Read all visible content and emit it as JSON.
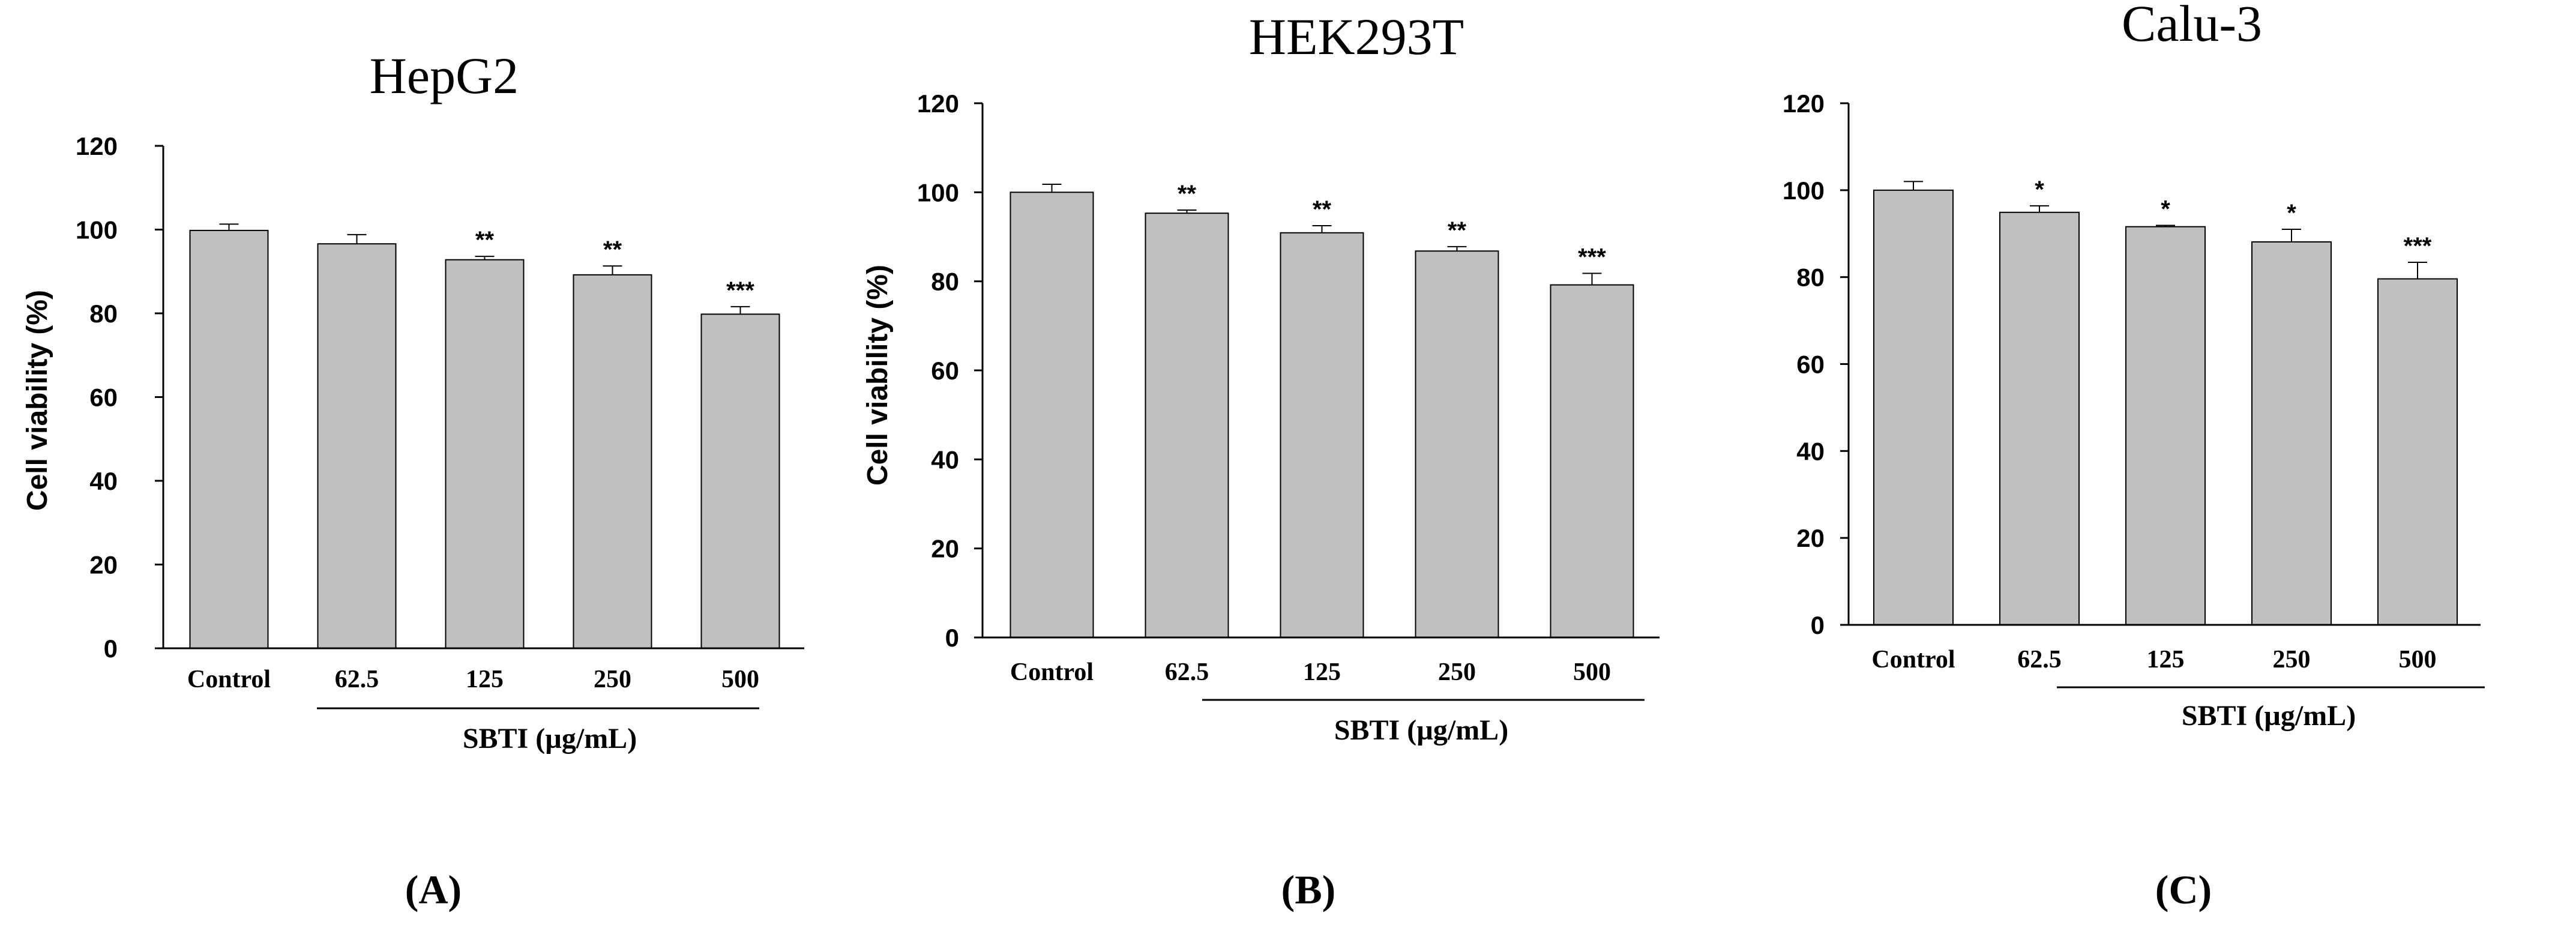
{
  "chart_data": [
    {
      "type": "bar",
      "panel_label": "(A)",
      "title": "HepG2",
      "ylabel": "Cell viability (%)",
      "xlabel": "SBTI (µg/mL)",
      "categories": [
        "Control",
        "62.5",
        "125",
        "250",
        "500"
      ],
      "values": [
        99.8,
        96.6,
        92.8,
        89.2,
        79.8
      ],
      "errors": [
        1.5,
        2.2,
        0.8,
        2.1,
        1.8
      ],
      "annotations": [
        "",
        "",
        "**",
        "**",
        "***"
      ],
      "ylim": [
        0,
        120
      ],
      "yticks": [
        "0",
        "20",
        "40",
        "60",
        "80",
        "100",
        "120"
      ],
      "grid": false,
      "bar_color": "#c0c0c0"
    },
    {
      "type": "bar",
      "panel_label": "(B)",
      "title": "HEK293T",
      "ylabel": "Cell viability (%)",
      "xlabel": "SBTI (µg/mL)",
      "categories": [
        "Control",
        "62.5",
        "125",
        "250",
        "500"
      ],
      "values": [
        100.0,
        95.3,
        90.9,
        86.8,
        79.2
      ],
      "errors": [
        1.8,
        0.7,
        1.6,
        1.0,
        2.6
      ],
      "annotations": [
        "",
        "**",
        "**",
        "**",
        "***"
      ],
      "ylim": [
        0,
        120
      ],
      "yticks": [
        "0",
        "20",
        "40",
        "60",
        "80",
        "100",
        "120"
      ],
      "grid": false,
      "bar_color": "#c0c0c0"
    },
    {
      "type": "bar",
      "panel_label": "(C)",
      "title": "Calu-3",
      "ylabel": "",
      "xlabel": "SBTI (µg/mL)",
      "categories": [
        "Control",
        "62.5",
        "125",
        "250",
        "500"
      ],
      "values": [
        100.0,
        94.9,
        91.6,
        88.1,
        79.6
      ],
      "errors": [
        2.0,
        1.5,
        0.3,
        2.9,
        3.8
      ],
      "annotations": [
        "",
        "*",
        "*",
        "*",
        "***"
      ],
      "ylim": [
        0,
        120
      ],
      "yticks": [
        "0",
        "20",
        "40",
        "60",
        "80",
        "100",
        "120"
      ],
      "grid": false,
      "bar_color": "#c0c0c0"
    }
  ]
}
